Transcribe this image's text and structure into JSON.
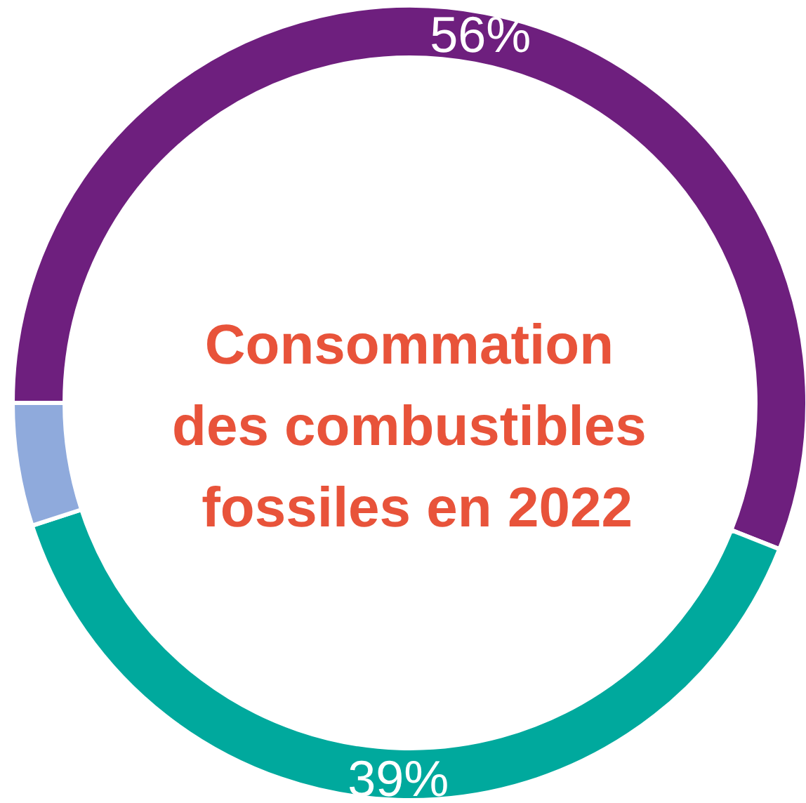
{
  "chart_data": {
    "type": "donut",
    "title": "Consommation des combustibles fossiles en 2022",
    "categories": [
      null,
      null,
      null
    ],
    "values": [
      56,
      39,
      5
    ],
    "colors": [
      "#6e1f7e",
      "#00a99d",
      "#8faadc"
    ],
    "value_labels": [
      "56%",
      "39%",
      null
    ]
  }
}
